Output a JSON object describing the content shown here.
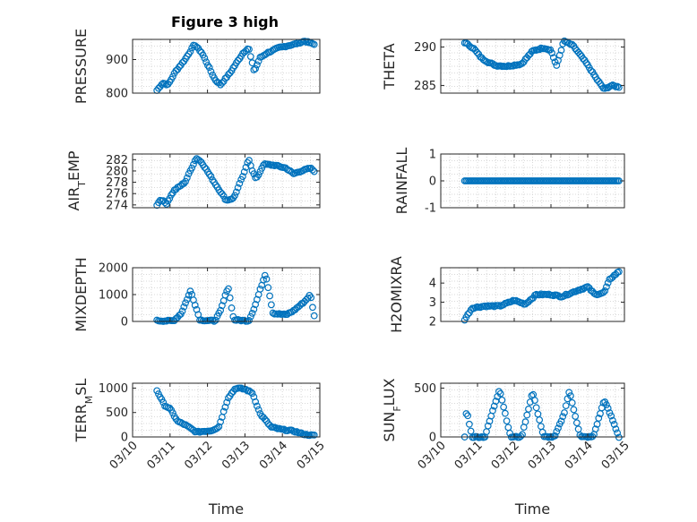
{
  "figure_title": "Figure 3 high",
  "colors": {
    "marker": "#0072bd",
    "axis": "#262626",
    "grid": "#d9d9d9"
  },
  "chart_data": [
    {
      "type": "scatter",
      "id": "pressure",
      "ylabel": "PRESSURE",
      "xlabel": "",
      "xlim": [
        0,
        5
      ],
      "ylim": [
        800,
        960
      ],
      "yticks": [
        800,
        900
      ],
      "x_start": 0.65,
      "x_end": 4.85,
      "knots": [
        [
          0.65,
          808
        ],
        [
          0.8,
          830
        ],
        [
          0.95,
          825
        ],
        [
          1.15,
          865
        ],
        [
          1.4,
          900
        ],
        [
          1.65,
          945
        ],
        [
          1.85,
          920
        ],
        [
          2.2,
          840
        ],
        [
          2.35,
          825
        ],
        [
          2.6,
          860
        ],
        [
          2.95,
          920
        ],
        [
          3.1,
          935
        ],
        [
          3.18,
          895
        ],
        [
          3.25,
          865
        ],
        [
          3.4,
          905
        ],
        [
          3.6,
          920
        ],
        [
          3.9,
          935
        ],
        [
          4.3,
          945
        ],
        [
          4.6,
          955
        ],
        [
          4.85,
          945
        ]
      ]
    },
    {
      "type": "scatter",
      "id": "theta",
      "ylabel": "THETA",
      "xlabel": "",
      "xlim": [
        0,
        5
      ],
      "ylim": [
        284,
        291
      ],
      "yticks": [
        285,
        290
      ],
      "x_start": 0.65,
      "x_end": 4.85,
      "knots": [
        [
          0.65,
          290.6
        ],
        [
          0.9,
          289.8
        ],
        [
          1.1,
          288.6
        ],
        [
          1.3,
          288.0
        ],
        [
          1.5,
          287.6
        ],
        [
          1.8,
          287.5
        ],
        [
          2.2,
          287.8
        ],
        [
          2.5,
          289.5
        ],
        [
          2.8,
          289.9
        ],
        [
          3.0,
          289.6
        ],
        [
          3.15,
          287.5
        ],
        [
          3.35,
          290.8
        ],
        [
          3.6,
          290.2
        ],
        [
          3.95,
          288.0
        ],
        [
          4.25,
          285.8
        ],
        [
          4.45,
          284.5
        ],
        [
          4.65,
          285.0
        ],
        [
          4.85,
          284.8
        ]
      ]
    },
    {
      "type": "scatter",
      "id": "air_temp",
      "ylabel": "AIR_TEMP",
      "xlabel": "",
      "xlim": [
        0,
        5
      ],
      "ylim": [
        273.5,
        283
      ],
      "yticks": [
        274,
        276,
        278,
        280,
        282
      ],
      "x_start": 0.65,
      "x_end": 4.85,
      "knots": [
        [
          0.65,
          274
        ],
        [
          0.75,
          275
        ],
        [
          0.9,
          274.2
        ],
        [
          1.1,
          276.5
        ],
        [
          1.4,
          278
        ],
        [
          1.7,
          282.3
        ],
        [
          1.85,
          281.5
        ],
        [
          2.2,
          277.8
        ],
        [
          2.5,
          274.8
        ],
        [
          2.7,
          275.2
        ],
        [
          3.0,
          280
        ],
        [
          3.1,
          282.2
        ],
        [
          3.2,
          280
        ],
        [
          3.3,
          278.5
        ],
        [
          3.5,
          281.2
        ],
        [
          3.8,
          281.0
        ],
        [
          4.1,
          280.5
        ],
        [
          4.3,
          279.5
        ],
        [
          4.5,
          280
        ],
        [
          4.75,
          280.5
        ],
        [
          4.85,
          280
        ]
      ]
    },
    {
      "type": "scatter",
      "id": "rainfall",
      "ylabel": "RAINFALL",
      "xlabel": "",
      "xlim": [
        0,
        5
      ],
      "ylim": [
        -1,
        1
      ],
      "yticks": [
        -1,
        0,
        1
      ],
      "x_start": 0.65,
      "x_end": 4.85,
      "knots": [
        [
          0.65,
          0
        ],
        [
          4.85,
          0
        ]
      ]
    },
    {
      "type": "scatter",
      "id": "mixdepth",
      "ylabel": "MIXDEPTH",
      "xlabel": "",
      "xlim": [
        0,
        5
      ],
      "ylim": [
        0,
        2000
      ],
      "yticks": [
        0,
        1000,
        2000
      ],
      "x_start": 0.65,
      "x_end": 4.85,
      "knots": [
        [
          0.65,
          30
        ],
        [
          0.95,
          20
        ],
        [
          1.1,
          30
        ],
        [
          1.3,
          300
        ],
        [
          1.55,
          1150
        ],
        [
          1.8,
          50
        ],
        [
          2.2,
          20
        ],
        [
          2.35,
          400
        ],
        [
          2.55,
          1300
        ],
        [
          2.7,
          60
        ],
        [
          3.1,
          20
        ],
        [
          3.25,
          500
        ],
        [
          3.55,
          1800
        ],
        [
          3.75,
          300
        ],
        [
          4.1,
          250
        ],
        [
          4.3,
          400
        ],
        [
          4.6,
          750
        ],
        [
          4.75,
          1000
        ],
        [
          4.85,
          200
        ]
      ]
    },
    {
      "type": "scatter",
      "id": "h2omixra",
      "ylabel": "H2OMIXRA",
      "xlabel": "",
      "xlim": [
        0,
        5
      ],
      "ylim": [
        2,
        4.8
      ],
      "yticks": [
        2,
        3,
        4
      ],
      "x_start": 0.65,
      "x_end": 4.85,
      "knots": [
        [
          0.65,
          2.1
        ],
        [
          0.85,
          2.7
        ],
        [
          1.2,
          2.8
        ],
        [
          1.6,
          2.8
        ],
        [
          2.0,
          3.1
        ],
        [
          2.3,
          2.9
        ],
        [
          2.6,
          3.4
        ],
        [
          3.0,
          3.4
        ],
        [
          3.3,
          3.3
        ],
        [
          3.7,
          3.6
        ],
        [
          4.0,
          3.8
        ],
        [
          4.2,
          3.4
        ],
        [
          4.45,
          3.5
        ],
        [
          4.6,
          4.2
        ],
        [
          4.85,
          4.6
        ]
      ]
    },
    {
      "type": "scatter",
      "id": "terr_msl",
      "ylabel": "TERR_MSL",
      "xlabel": "Time",
      "xlim": [
        0,
        5
      ],
      "ylim": [
        0,
        1100
      ],
      "yticks": [
        0,
        500,
        1000
      ],
      "xtick_labels": [
        "03/10",
        "03/11",
        "03/12",
        "03/13",
        "03/14",
        "03/15"
      ],
      "x_start": 0.65,
      "x_end": 4.85,
      "knots": [
        [
          0.65,
          950
        ],
        [
          0.85,
          650
        ],
        [
          1.0,
          580
        ],
        [
          1.2,
          320
        ],
        [
          1.4,
          250
        ],
        [
          1.7,
          100
        ],
        [
          2.1,
          130
        ],
        [
          2.3,
          200
        ],
        [
          2.55,
          800
        ],
        [
          2.75,
          1000
        ],
        [
          3.0,
          980
        ],
        [
          3.2,
          900
        ],
        [
          3.4,
          480
        ],
        [
          3.7,
          200
        ],
        [
          4.0,
          150
        ],
        [
          4.3,
          120
        ],
        [
          4.6,
          50
        ],
        [
          4.85,
          30
        ]
      ]
    },
    {
      "type": "scatter",
      "id": "sun_flux",
      "ylabel": "SUN_FLUX",
      "xlabel": "Time",
      "xlim": [
        0,
        5
      ],
      "ylim": [
        0,
        550
      ],
      "yticks": [
        0,
        500
      ],
      "xtick_labels": [
        "03/10",
        "03/11",
        "03/12",
        "03/13",
        "03/14",
        "03/15"
      ],
      "x_start": 0.65,
      "x_end": 4.85,
      "knots": [
        [
          0.65,
          0
        ],
        [
          0.7,
          280
        ],
        [
          0.85,
          0
        ],
        [
          1.2,
          0
        ],
        [
          1.4,
          250
        ],
        [
          1.6,
          490
        ],
        [
          1.9,
          0
        ],
        [
          2.2,
          0
        ],
        [
          2.5,
          460
        ],
        [
          2.8,
          0
        ],
        [
          3.1,
          0
        ],
        [
          3.35,
          230
        ],
        [
          3.5,
          470
        ],
        [
          3.8,
          0
        ],
        [
          4.15,
          0
        ],
        [
          4.45,
          380
        ],
        [
          4.65,
          200
        ],
        [
          4.85,
          0
        ]
      ]
    }
  ]
}
